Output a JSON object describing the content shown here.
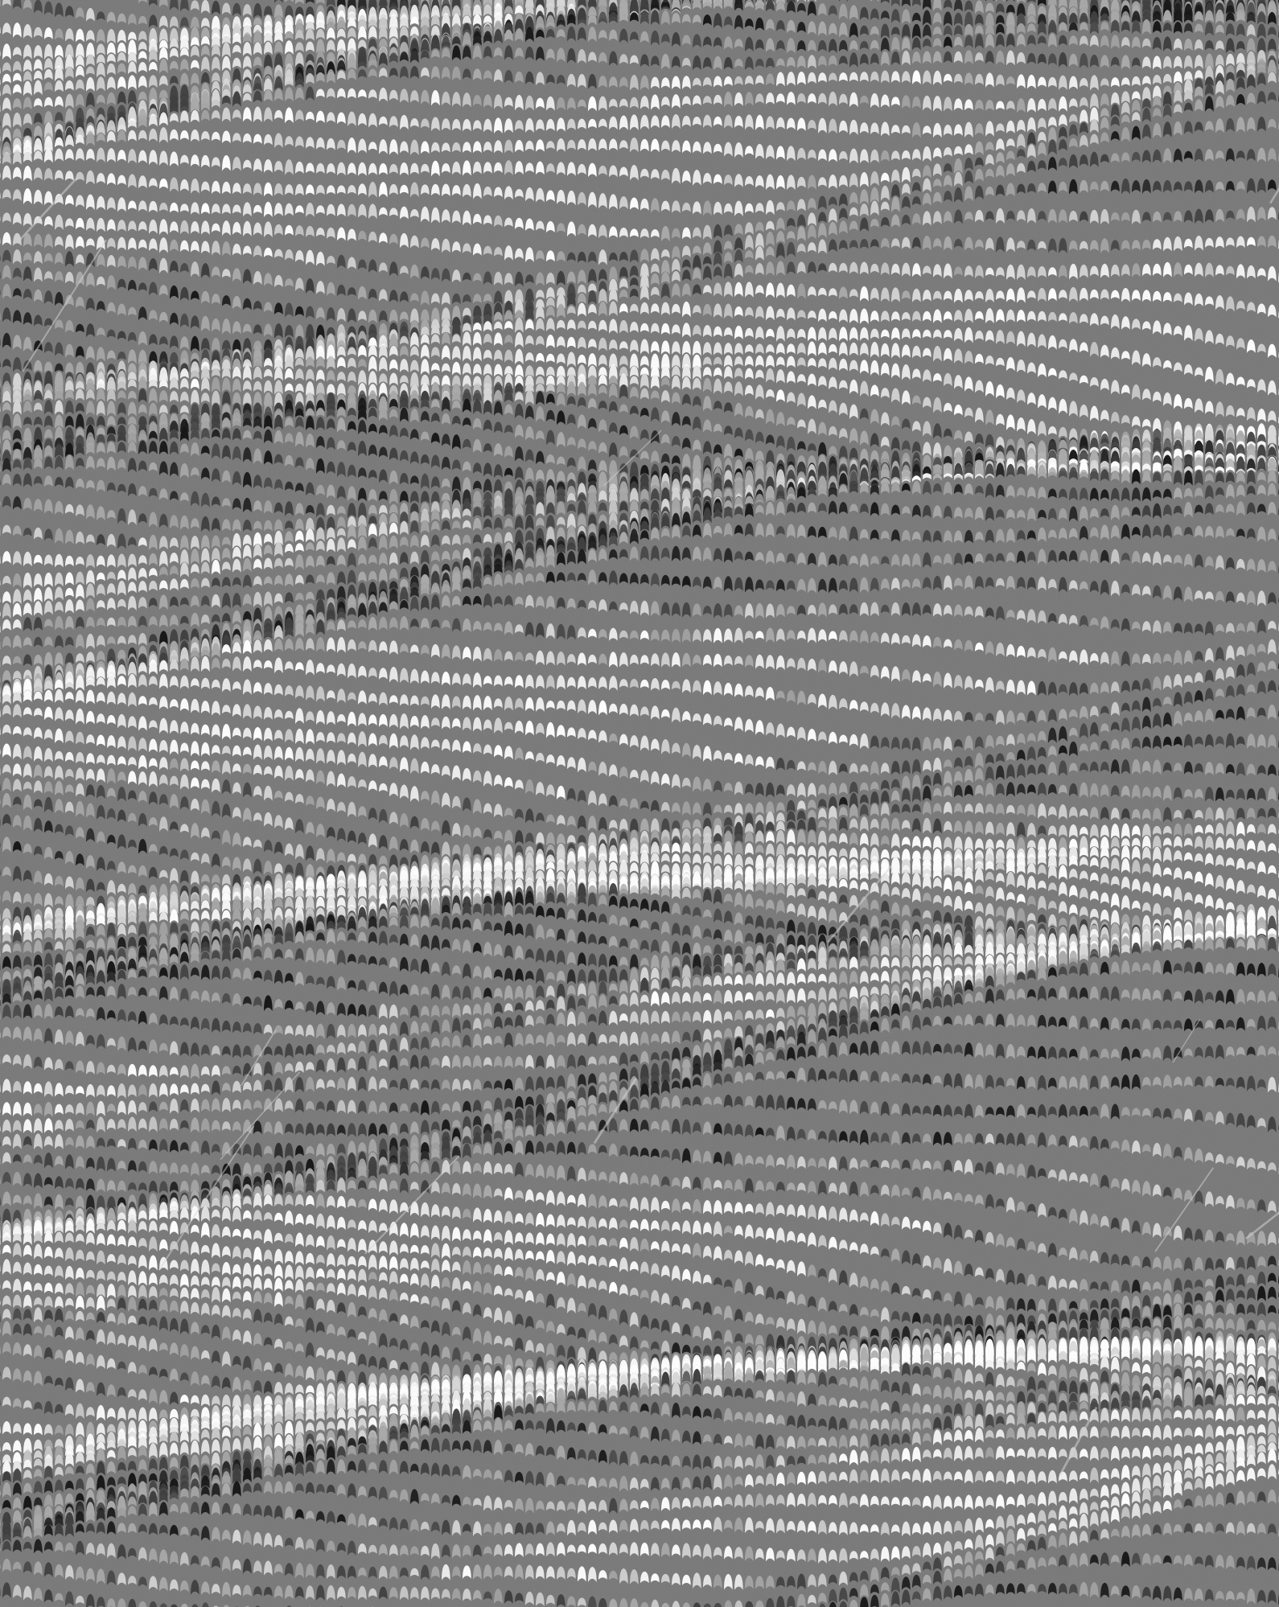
{
  "image": {
    "kind": "marbled-paper-texture",
    "pattern": "nonpareil-comb",
    "palette": {
      "ground": "#787878",
      "highlight": "#ffffff",
      "light": "#d8d8d8",
      "mid": "#a9a9a9",
      "shadow": "#3a3a3a",
      "ink": "#111111"
    }
  }
}
